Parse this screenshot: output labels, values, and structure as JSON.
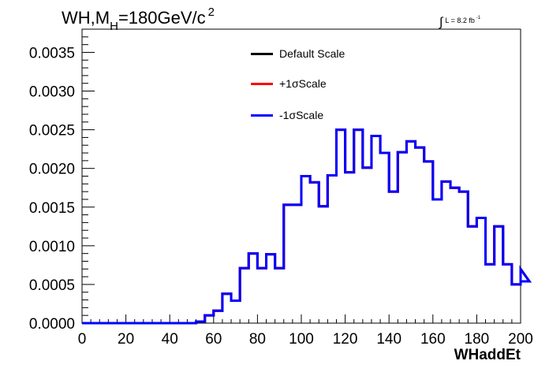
{
  "chart_data": {
    "type": "line",
    "title_parts": {
      "pre": "WH,M",
      "sub": "H",
      "mid": "=180GeV/c",
      "sup": "2"
    },
    "lumi": {
      "integral": "∫",
      "text": "L = 8.2 fb",
      "sup": "-1"
    },
    "xlabel": "WHaddEt",
    "ylabel": "",
    "xlim": [
      0,
      200
    ],
    "ylim": [
      0,
      0.0038
    ],
    "xticks": [
      "0",
      "20",
      "40",
      "60",
      "80",
      "100",
      "120",
      "140",
      "160",
      "180",
      "200"
    ],
    "yticks": [
      "0.0000",
      "0.0005",
      "0.0010",
      "0.0015",
      "0.0020",
      "0.0025",
      "0.0030",
      "0.0035"
    ],
    "bin_width": 4,
    "bin_edges_start": 0,
    "series": [
      {
        "name": "Default Scale",
        "color": "#000000"
      },
      {
        "name": "+1σScale",
        "color": "#ff0000"
      },
      {
        "name": "-1σScale",
        "color": "#0000ff"
      }
    ],
    "values": [
      0,
      0,
      0,
      0,
      0,
      0,
      0,
      0,
      0,
      0,
      0,
      0,
      0,
      2e-05,
      0.0001,
      0.00016,
      0.00038,
      0.00029,
      0.00071,
      0.0009,
      0.00071,
      0.00089,
      0.00071,
      0.00153,
      0.00153,
      0.0019,
      0.00182,
      0.00151,
      0.00191,
      0.0025,
      0.00195,
      0.0025,
      0.00201,
      0.00242,
      0.0022,
      0.0017,
      0.00221,
      0.00235,
      0.00227,
      0.00209,
      0.0016,
      0.00183,
      0.00175,
      0.0017,
      0.00125,
      0.00136,
      0.00076,
      0.00125,
      0.00076,
      0.0005,
      0.0007,
      0.00054
    ]
  }
}
